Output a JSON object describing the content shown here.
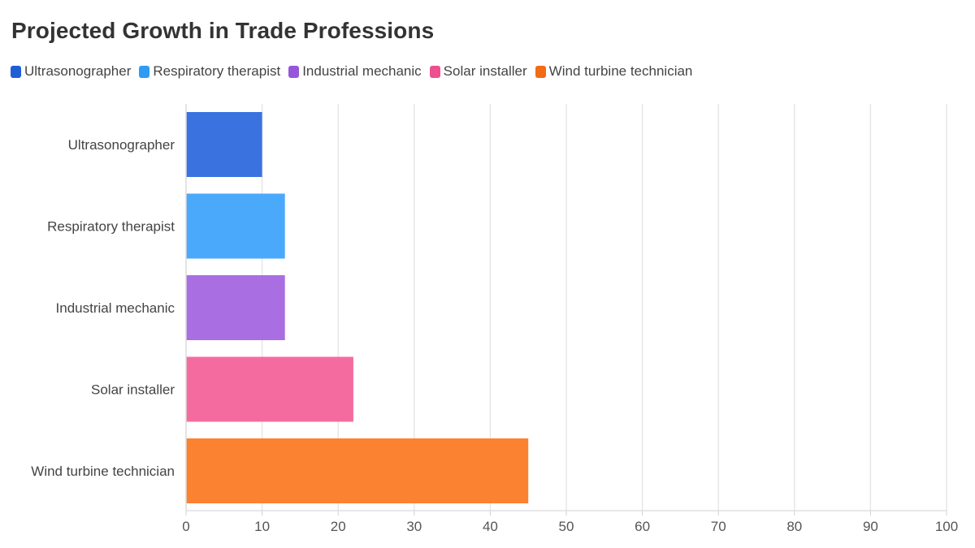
{
  "chart_data": {
    "type": "bar",
    "orientation": "horizontal",
    "title": "Projected Growth in Trade Professions",
    "xlabel": "",
    "ylabel": "",
    "categories": [
      "Ultrasonographer",
      "Respiratory therapist",
      "Industrial mechanic",
      "Solar installer",
      "Wind turbine technician"
    ],
    "values": [
      10,
      13,
      13,
      22,
      45
    ],
    "colors": [
      "#3a73e0",
      "#4aa9fb",
      "#a86ee2",
      "#f46c9f",
      "#fb8230"
    ],
    "legend": {
      "placement": "top-left",
      "entries": [
        {
          "label": "Ultrasonographer",
          "color": "#1f5fd6"
        },
        {
          "label": "Respiratory therapist",
          "color": "#2f9bf2"
        },
        {
          "label": "Industrial mechanic",
          "color": "#9656da"
        },
        {
          "label": "Solar installer",
          "color": "#ee4f8e"
        },
        {
          "label": "Wind turbine technician",
          "color": "#f26b16"
        }
      ]
    },
    "xlim": [
      0,
      100
    ],
    "xticks": [
      "0",
      "10",
      "20",
      "30",
      "40",
      "50",
      "60",
      "70",
      "80",
      "90",
      "100"
    ],
    "grid": true
  }
}
